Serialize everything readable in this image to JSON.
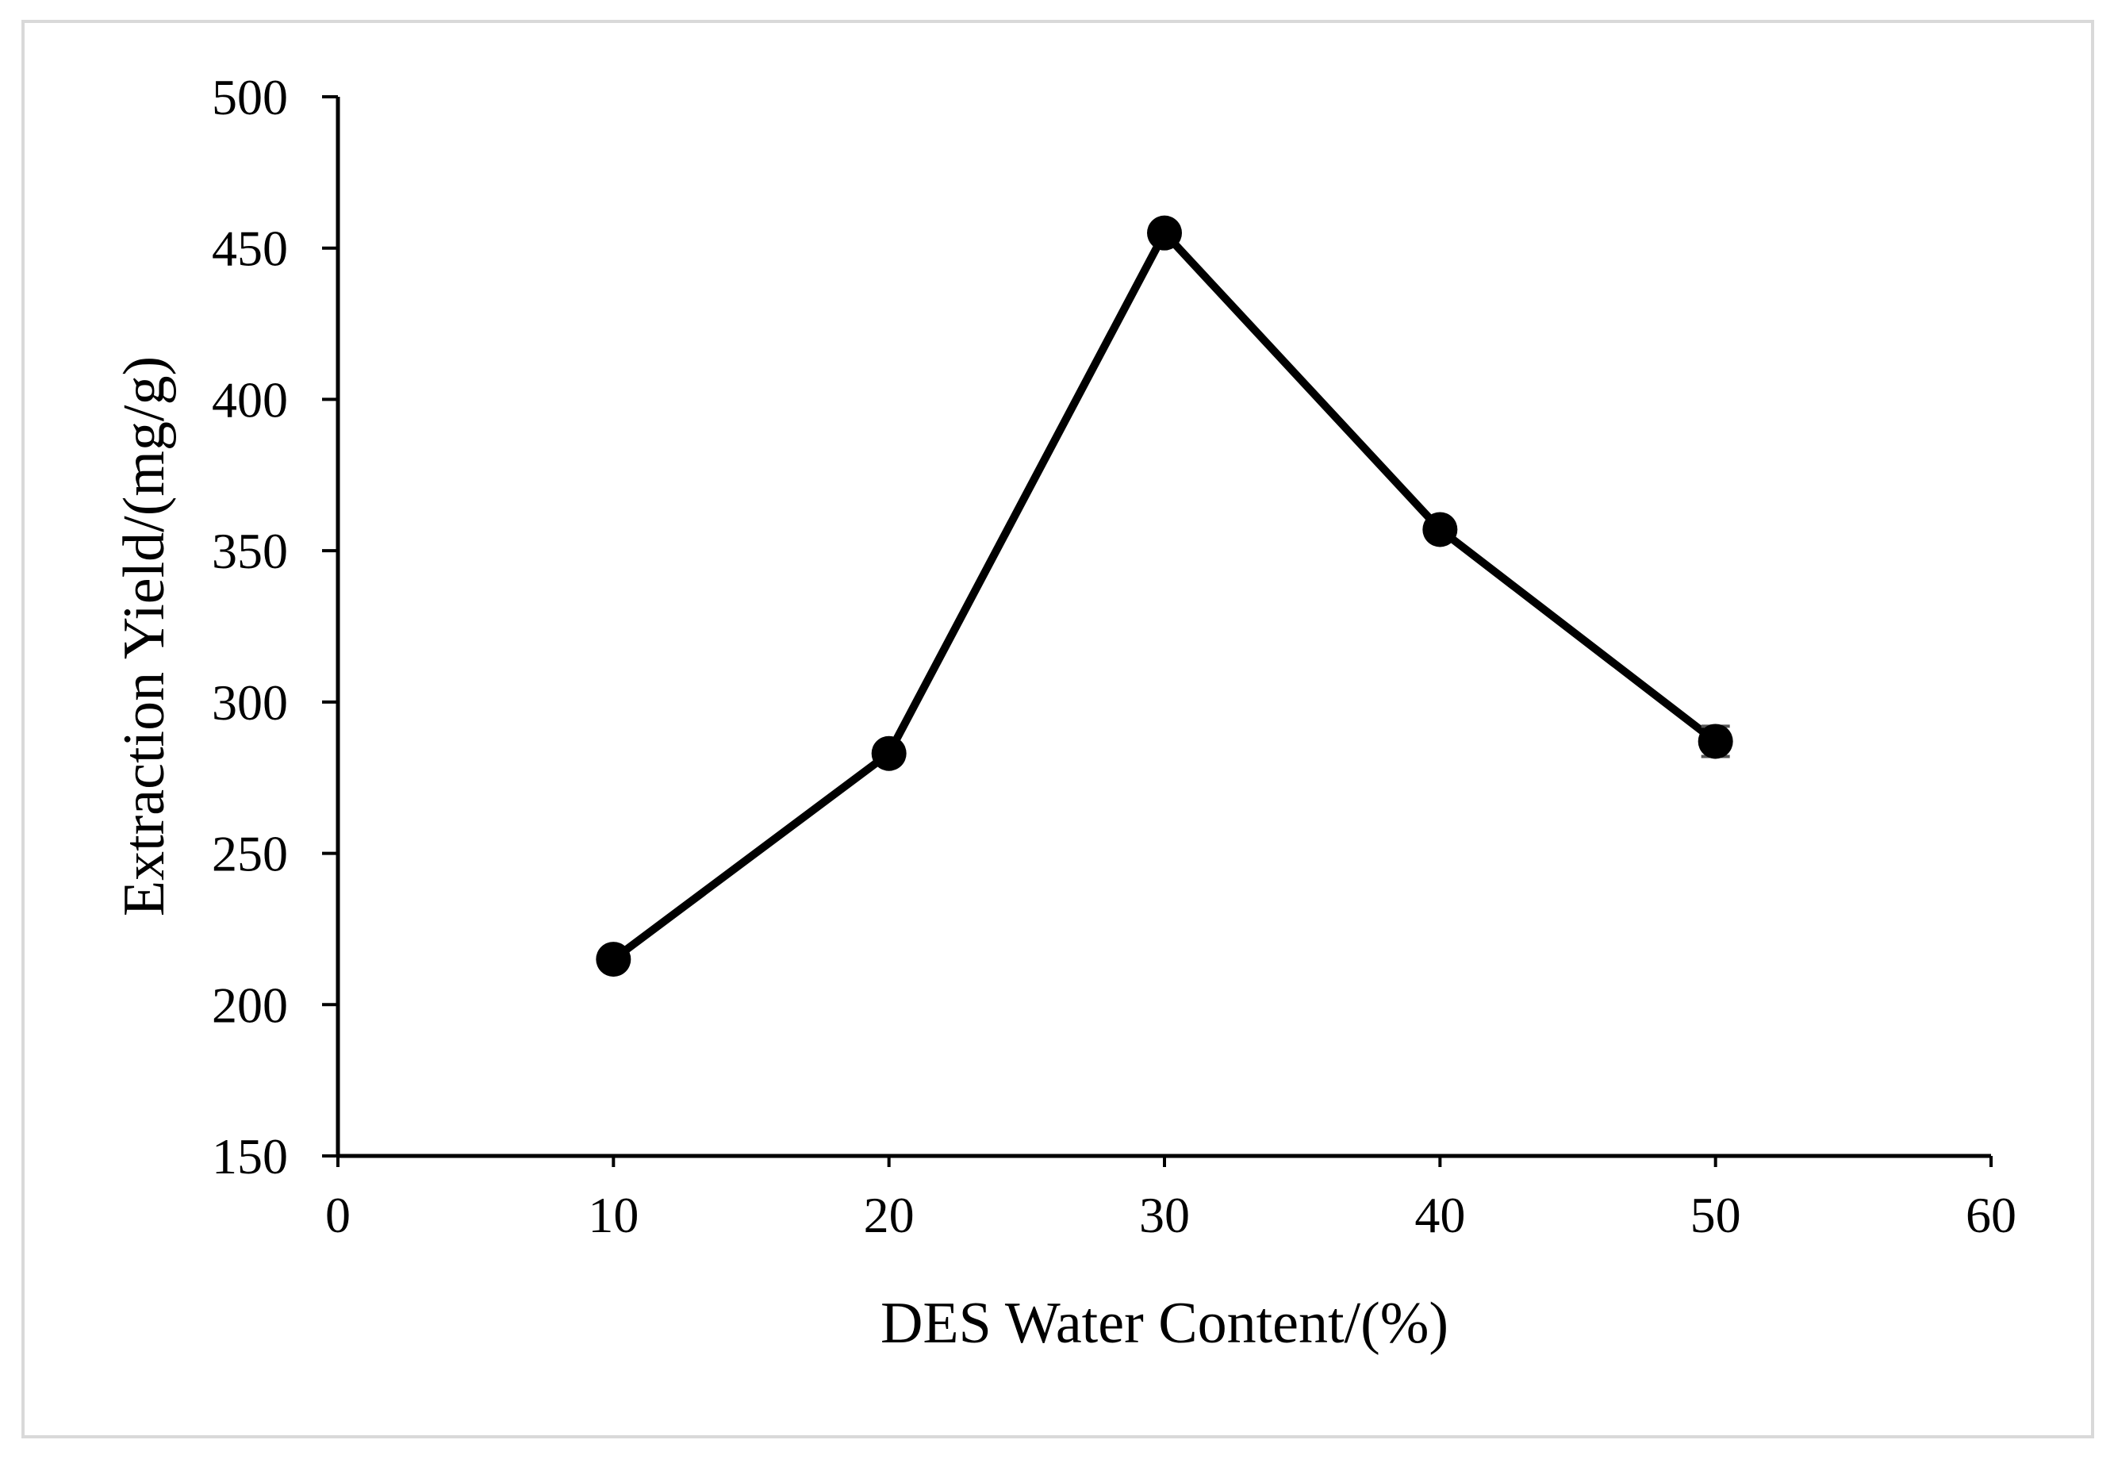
{
  "chart_data": {
    "type": "line",
    "title": "",
    "xlabel": "DES Water Content/(%)",
    "ylabel": "Extraction Yield/(mg/g)",
    "xlim": [
      0,
      60
    ],
    "ylim": [
      150,
      500
    ],
    "xticks": [
      0,
      10,
      20,
      30,
      40,
      50,
      60
    ],
    "yticks": [
      150,
      200,
      250,
      300,
      350,
      400,
      450,
      500
    ],
    "grid": false,
    "legend": "none",
    "series": [
      {
        "name": "Extraction Yield",
        "x": [
          10,
          20,
          30,
          40,
          50
        ],
        "y": [
          215,
          283,
          455,
          357,
          287
        ],
        "error": [
          1,
          2,
          2,
          2,
          5
        ],
        "color": "#000000",
        "marker": "circle"
      }
    ]
  },
  "colors": {
    "frame": "#d9d9d9",
    "axis": "#000000",
    "series": "#000000",
    "error_bar": "#555555"
  }
}
